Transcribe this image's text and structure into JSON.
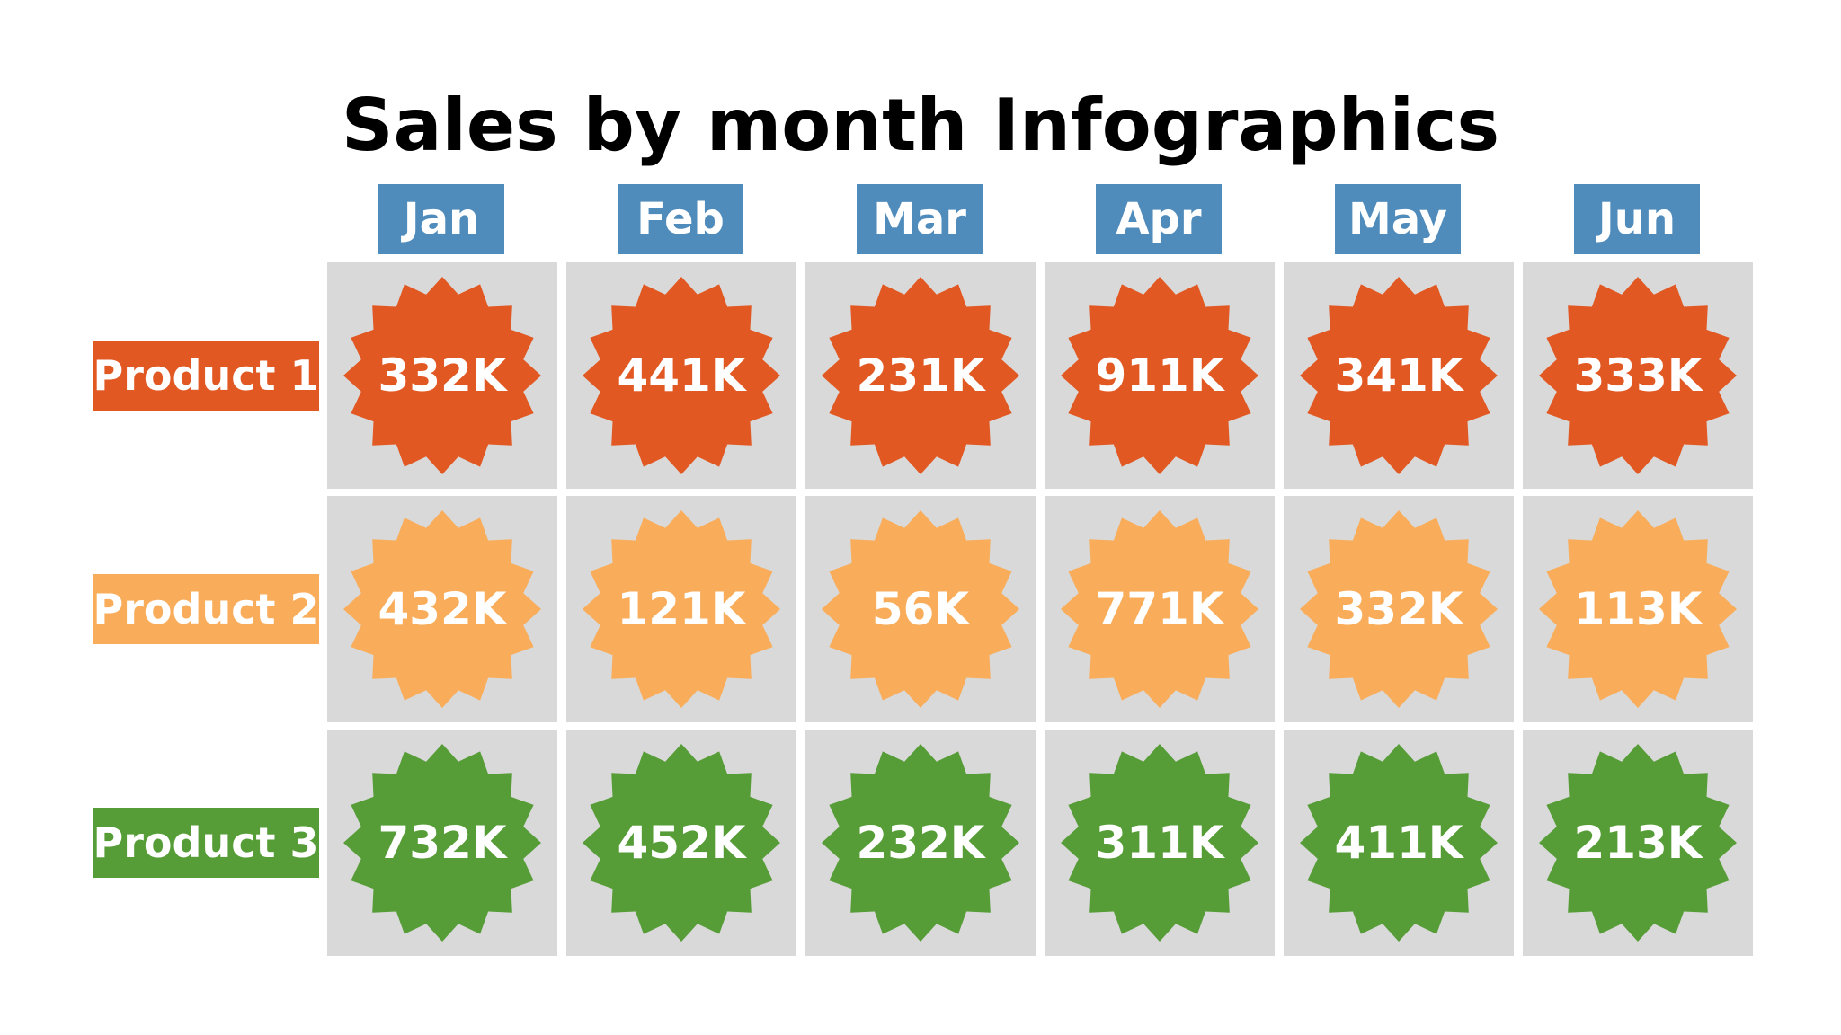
{
  "chart_data": {
    "type": "table",
    "title": "Sales by month Infographics",
    "categories": [
      "Jan",
      "Feb",
      "Mar",
      "Apr",
      "May",
      "Jun"
    ],
    "series": [
      {
        "name": "Product 1",
        "color": "#e25822",
        "values": [
          "332K",
          "441K",
          "231K",
          "911K",
          "341K",
          "333K"
        ]
      },
      {
        "name": "Product 2",
        "color": "#f9ad5a",
        "values": [
          "432K",
          "121K",
          "56K",
          "771K",
          "332K",
          "113K"
        ]
      },
      {
        "name": "Product 3",
        "color": "#569d37",
        "values": [
          "732K",
          "452K",
          "232K",
          "311K",
          "411K",
          "213K"
        ]
      }
    ]
  },
  "colors": {
    "month_header": "#4f8bbb",
    "cell_background": "#d9d9d9"
  }
}
